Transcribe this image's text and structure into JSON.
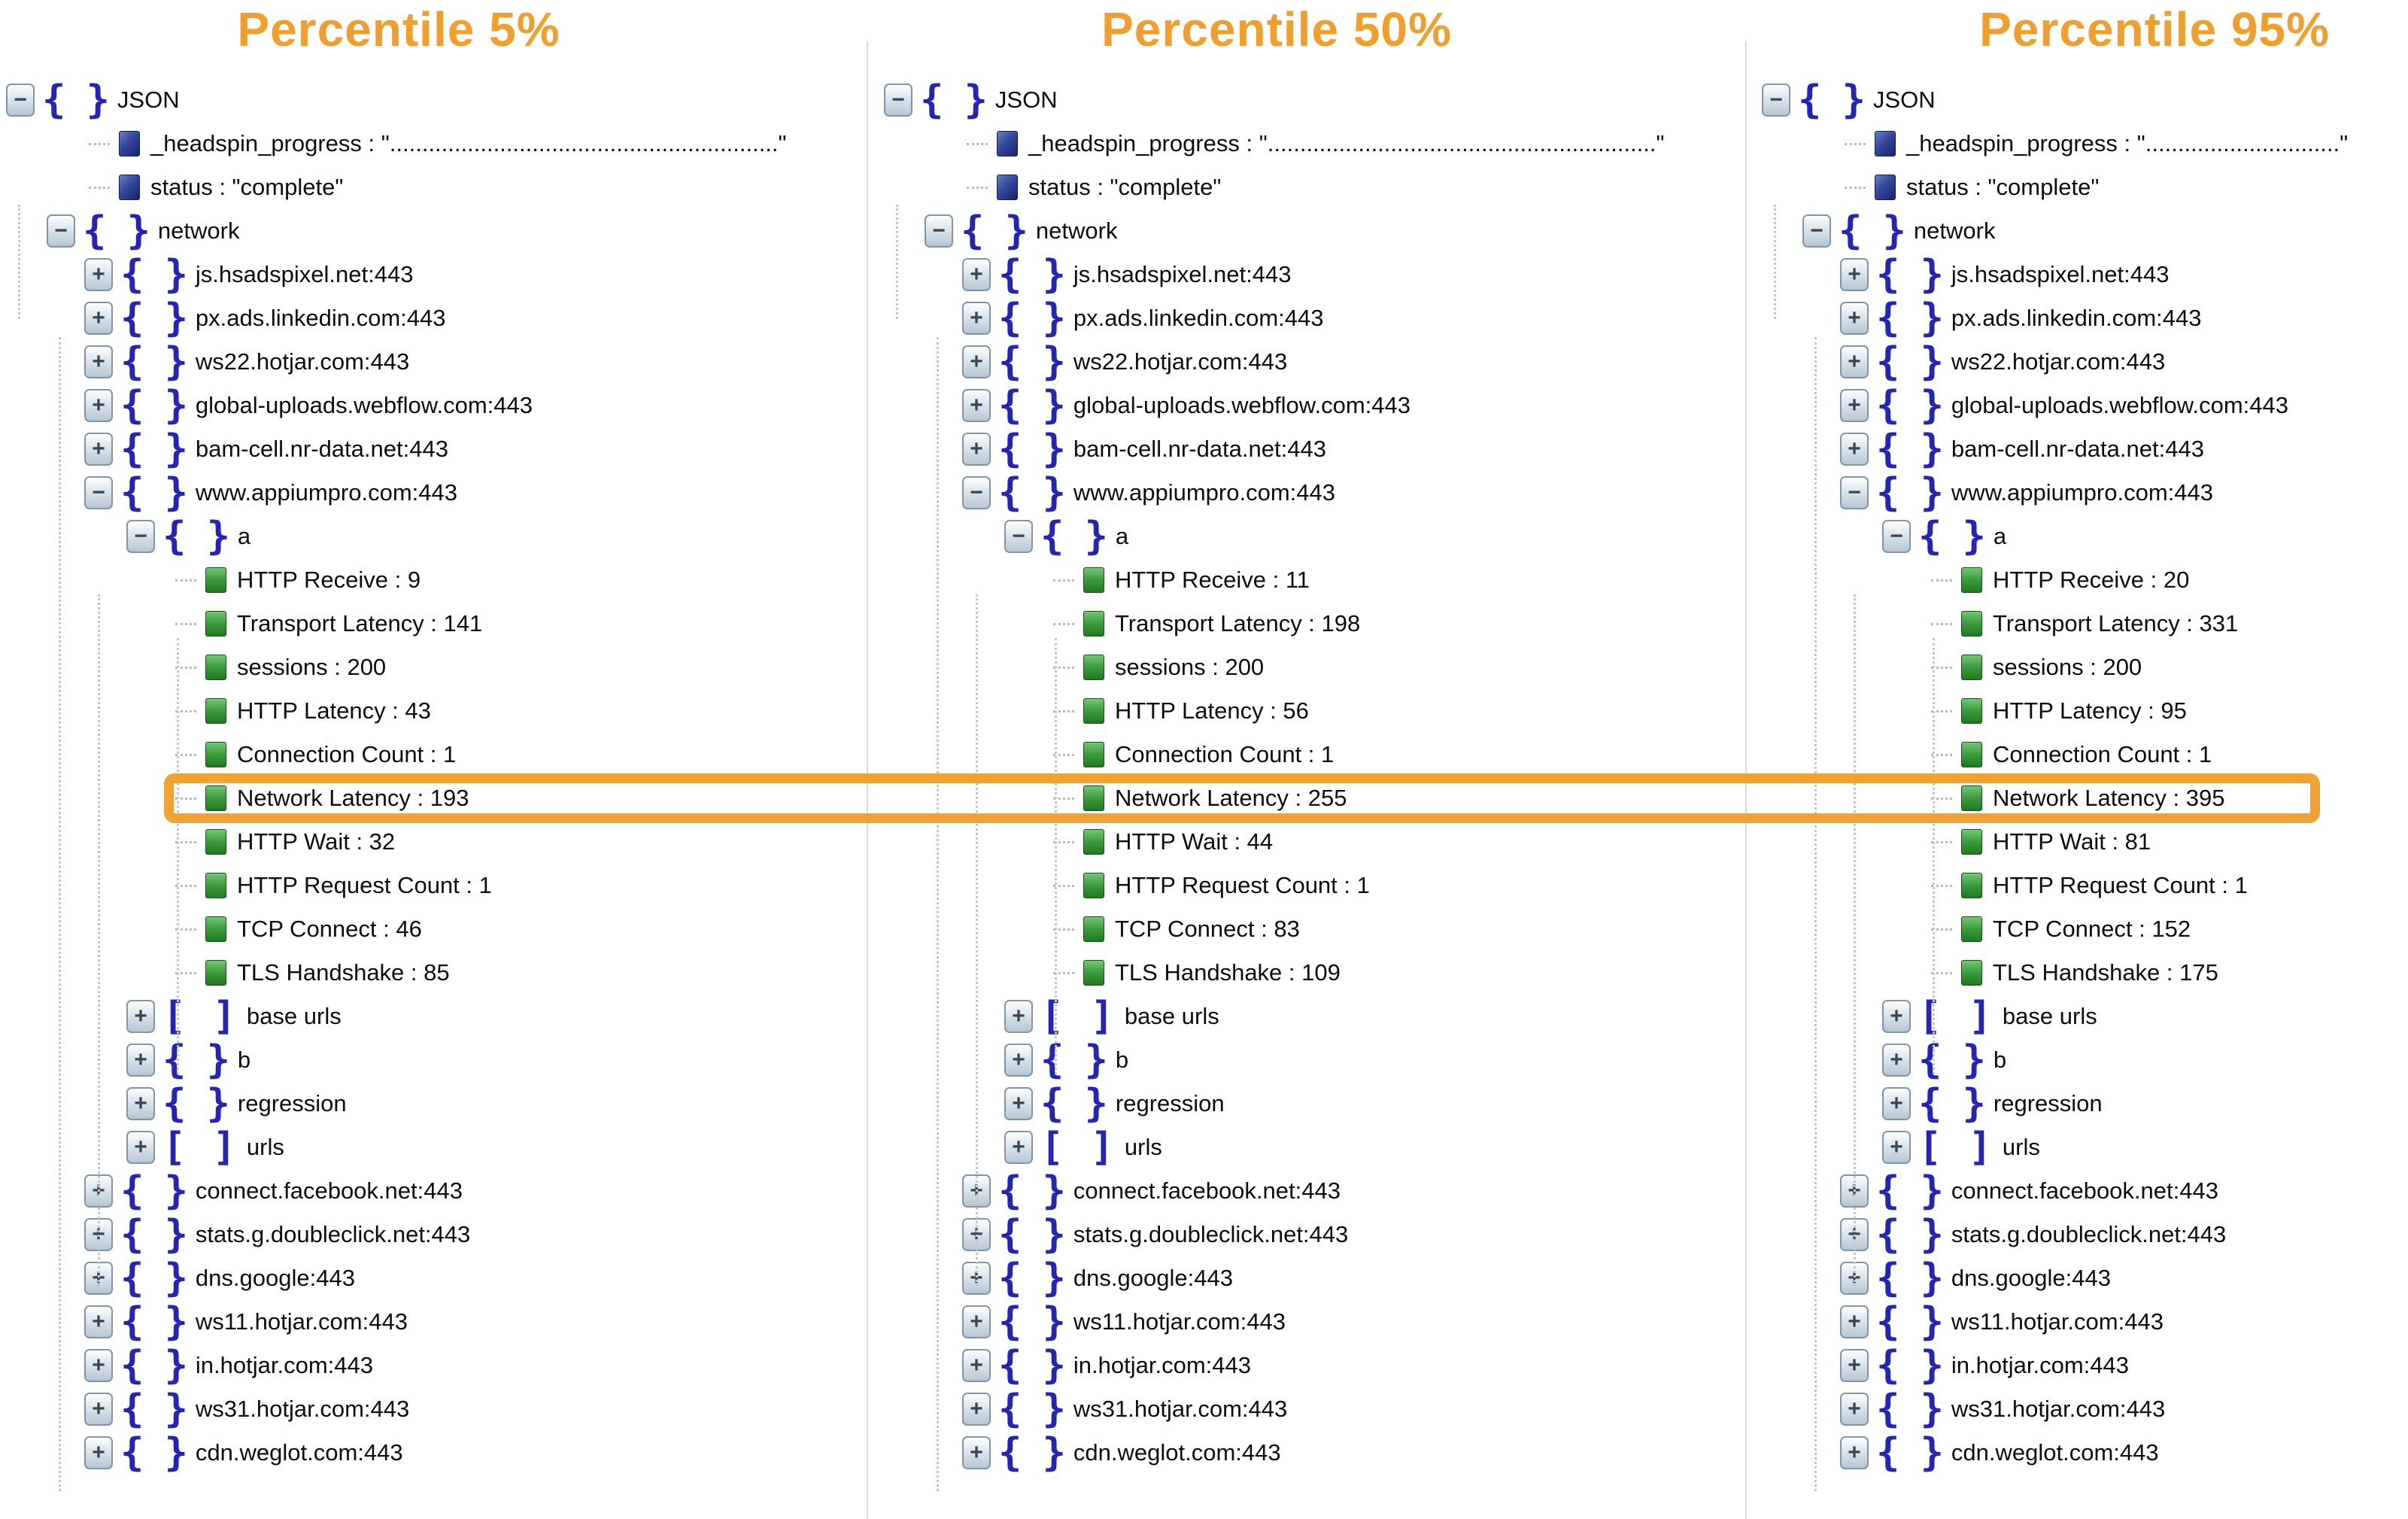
{
  "tree": {
    "root_label": "JSON",
    "progress_label": "_headspin_progress",
    "status_label": "status",
    "status_value": "\"complete\"",
    "network_label": "network",
    "hosts_before": [
      "js.hsadspixel.net:443",
      "px.ads.linkedin.com:443",
      "ws22.hotjar.com:443",
      "global-uploads.webflow.com:443",
      "bam-cell.nr-data.net:443"
    ],
    "expanded_host": "www.appiumpro.com:443",
    "a_label": "a",
    "metric_order": [
      "HTTP Receive",
      "Transport Latency",
      "sessions",
      "HTTP Latency",
      "Connection Count",
      "Network Latency",
      "HTTP Wait",
      "HTTP Request Count",
      "TCP Connect",
      "TLS Handshake"
    ],
    "highlight_metric": "Network Latency",
    "siblings_after_a": [
      {
        "label": "base urls",
        "kind": "array"
      },
      {
        "label": "b",
        "kind": "object"
      },
      {
        "label": "regression",
        "kind": "object"
      },
      {
        "label": "urls",
        "kind": "array"
      }
    ],
    "hosts_after": [
      "connect.facebook.net:443",
      "stats.g.doubleclick.net:443",
      "dns.google:443",
      "ws11.hotjar.com:443",
      "in.hotjar.com:443",
      "ws31.hotjar.com:443",
      "cdn.weglot.com:443"
    ]
  },
  "columns": [
    {
      "title": "Percentile 5%",
      "progress_value": "\"............................................................\"",
      "metrics": {
        "HTTP Receive": "9",
        "Transport Latency": "141",
        "sessions": "200",
        "HTTP Latency": "43",
        "Connection Count": "1",
        "Network Latency": "193",
        "HTTP Wait": "32",
        "HTTP Request Count": "1",
        "TCP Connect": "46",
        "TLS Handshake": "85"
      }
    },
    {
      "title": "Percentile 50%",
      "progress_value": "\"............................................................\"",
      "metrics": {
        "HTTP Receive": "11",
        "Transport Latency": "198",
        "sessions": "200",
        "HTTP Latency": "56",
        "Connection Count": "1",
        "Network Latency": "255",
        "HTTP Wait": "44",
        "HTTP Request Count": "1",
        "TCP Connect": "83",
        "TLS Handshake": "109"
      }
    },
    {
      "title": "Percentile 95%",
      "progress_value": "\"..............................\"",
      "metrics": {
        "HTTP Receive": "20",
        "Transport Latency": "331",
        "sessions": "200",
        "HTTP Latency": "95",
        "Connection Count": "1",
        "Network Latency": "395",
        "HTTP Wait": "81",
        "HTTP Request Count": "1",
        "TCP Connect": "152",
        "TLS Handshake": "175"
      }
    }
  ],
  "highlight": {
    "color": "#F0A232",
    "highlighted_rows": [
      "Network Latency : 193",
      "Network Latency : 255",
      "Network Latency : 395"
    ]
  },
  "title_color": "#F09F2E",
  "icon_legend": {
    "minus-box-icon": "collapse toggle (expanded node)",
    "plus-box-icon": "expand toggle (collapsed node)",
    "object-braces-icon": "JSON object node",
    "array-brackets-icon": "JSON array node",
    "string-value-icon": "string leaf (dark blue square)",
    "number-value-icon": "numeric leaf (green square)"
  }
}
